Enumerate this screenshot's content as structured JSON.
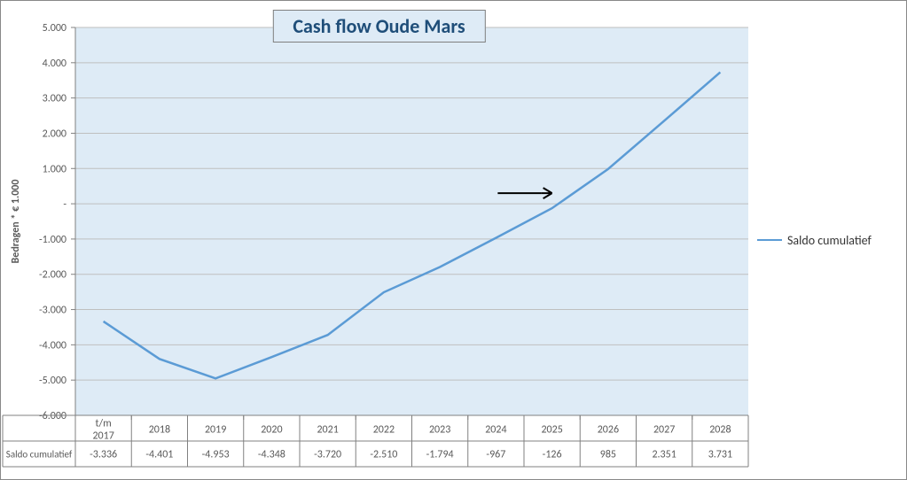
{
  "chart": {
    "type": "line",
    "title": "Cash flow Oude Mars",
    "title_fontsize": 22,
    "title_color": "#1f4e79",
    "title_border": "#7f7f7f",
    "ylabel": "Bedragen * € 1.000",
    "ylabel_fontsize": 12,
    "plot_bg": "#deebf6",
    "grid_color": "#bfbfbf",
    "axis_color": "#808080",
    "tick_color": "#808080",
    "tick_fontsize": 12,
    "ylim": [
      -6000,
      5000
    ],
    "ytick_step": 1000,
    "ytick_labels": [
      "-6.000",
      "-5.000",
      "-4.000",
      "-3.000",
      "-2.000",
      "-1.000",
      "-",
      "1.000",
      "2.000",
      "3.000",
      "4.000",
      "5.000"
    ],
    "categories": [
      "t/m 2017",
      "2018",
      "2019",
      "2020",
      "2021",
      "2022",
      "2023",
      "2024",
      "2025",
      "2026",
      "2027",
      "2028"
    ],
    "series": [
      {
        "name": "Saldo cumulatief",
        "color": "#5b9bd5",
        "line_width": 2.5,
        "values": [
          -3336,
          -4401,
          -4953,
          -4348,
          -3720,
          -2510,
          -1794,
          -967,
          -126,
          985,
          2351,
          3731
        ],
        "display": [
          "-3.336",
          "-4.401",
          "-4.953",
          "-4.348",
          "-3.720",
          "-2.510",
          "-1.794",
          "-967",
          "-126",
          "985",
          "2.351",
          "3.731"
        ]
      }
    ],
    "arrow": {
      "x_from_cat": 7,
      "x_to_cat": 8,
      "y": 0,
      "color": "#000000",
      "stroke_width": 2
    }
  },
  "legend": {
    "label": "Saldo cumulatief"
  }
}
